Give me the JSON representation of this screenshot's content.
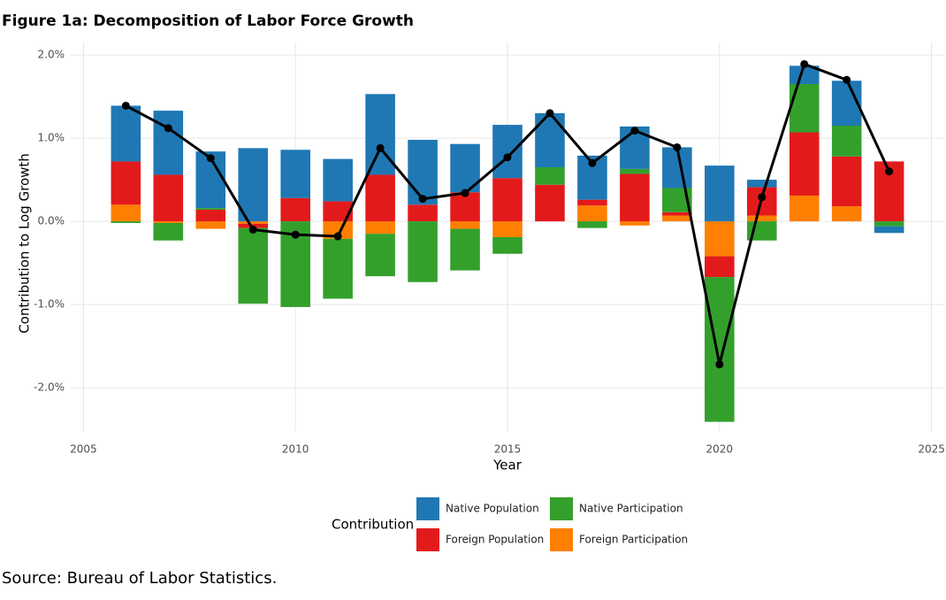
{
  "chart_data": {
    "type": "bar",
    "title": "Figure 1a: Decomposition of Labor Force Growth",
    "x_label": "Year",
    "y_label": "Contribution to Log Growth",
    "legend_title": "Contribution",
    "source": "Source: Bureau of Labor Statistics.",
    "stacked": true,
    "grid": true,
    "x": [
      2006,
      2007,
      2008,
      2009,
      2010,
      2011,
      2012,
      2013,
      2014,
      2015,
      2016,
      2017,
      2018,
      2019,
      2020,
      2021,
      2022,
      2023,
      2024
    ],
    "xlim": [
      2004.7,
      2025.3
    ],
    "xticks": [
      2005,
      2010,
      2015,
      2020,
      2025
    ],
    "ylim": [
      -2.52,
      2.15
    ],
    "yticks": [
      {
        "value": -2,
        "label": "-2.0%"
      },
      {
        "value": -1,
        "label": "-1.0%"
      },
      {
        "value": 0,
        "label": "0.0%"
      },
      {
        "value": 1,
        "label": "1.0%"
      },
      {
        "value": 2,
        "label": "2.0%"
      }
    ],
    "series": [
      {
        "name": "Native Population",
        "color": "#1f78b4",
        "values": [
          0.67,
          0.77,
          0.68,
          0.88,
          0.58,
          0.51,
          0.97,
          0.78,
          0.58,
          0.64,
          0.65,
          0.53,
          0.51,
          0.49,
          0.67,
          0.09,
          0.22,
          0.54,
          -0.08
        ]
      },
      {
        "name": "Foreign Population",
        "color": "#e31a1c",
        "values": [
          0.52,
          0.56,
          0.14,
          -0.05,
          0.28,
          0.24,
          0.56,
          0.2,
          0.35,
          0.52,
          0.44,
          0.07,
          0.57,
          0.04,
          -0.25,
          0.34,
          0.76,
          0.6,
          0.72
        ]
      },
      {
        "name": "Native Participation",
        "color": "#33a02c",
        "values": [
          -0.02,
          -0.21,
          0.02,
          -0.91,
          -1.03,
          -0.72,
          -0.51,
          -0.73,
          -0.5,
          -0.2,
          0.21,
          -0.08,
          0.06,
          0.29,
          -1.74,
          -0.23,
          0.58,
          0.37,
          -0.06
        ]
      },
      {
        "name": "Foreign Participation",
        "color": "#ff7f00",
        "values": [
          0.2,
          -0.02,
          -0.09,
          -0.03,
          0,
          -0.21,
          -0.15,
          0,
          -0.09,
          -0.19,
          0,
          0.19,
          -0.05,
          0.07,
          -0.42,
          0.07,
          0.31,
          0.18,
          0
        ]
      }
    ],
    "line": {
      "color": "#000000",
      "values": [
        1.39,
        1.12,
        0.76,
        -0.1,
        -0.16,
        -0.18,
        0.88,
        0.27,
        0.34,
        0.77,
        1.3,
        0.7,
        1.09,
        0.89,
        -1.72,
        0.29,
        1.89,
        1.7,
        0.6
      ]
    }
  }
}
